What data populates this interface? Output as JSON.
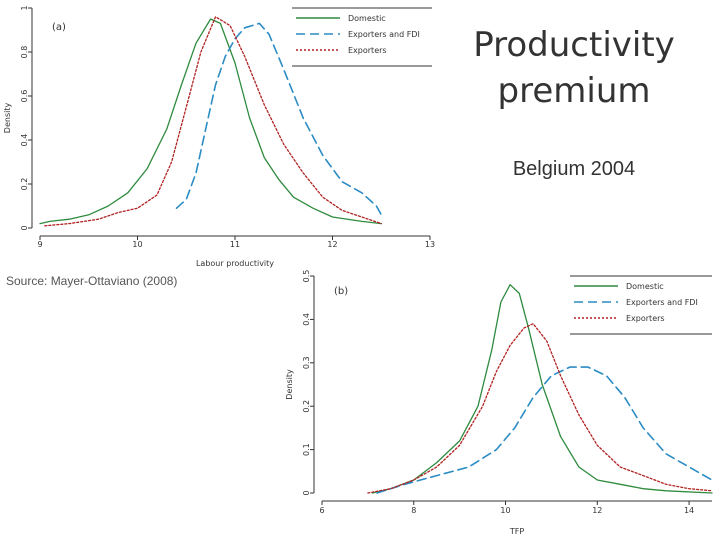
{
  "slide": {
    "title_line1": "Productivity",
    "title_line2": "premium",
    "subtitle": "Belgium 2004",
    "source": "Source: Mayer-Ottaviano (2008)"
  },
  "colors": {
    "domestic": "#2e8b3e",
    "exporters_fdi": "#2b8cc4",
    "exporters": "#b22222"
  },
  "chart_data": [
    {
      "type": "line",
      "panel_label": "(a)",
      "xlabel": "Labour productivity",
      "ylabel": "Density",
      "xlim": [
        9,
        13
      ],
      "ylim": [
        0,
        1
      ],
      "x_ticks": [
        "9",
        "10",
        "11",
        "12",
        "13"
      ],
      "y_ticks": [
        "0",
        "0.2",
        "0.4",
        "0.6",
        "0.8",
        "1"
      ],
      "legend_position": "top-right",
      "series": [
        {
          "name": "Domestic",
          "style": "solid",
          "color": "#2e8b3e",
          "points": [
            [
              9.0,
              0.02
            ],
            [
              9.1,
              0.03
            ],
            [
              9.3,
              0.04
            ],
            [
              9.5,
              0.06
            ],
            [
              9.7,
              0.1
            ],
            [
              9.9,
              0.16
            ],
            [
              10.1,
              0.27
            ],
            [
              10.3,
              0.45
            ],
            [
              10.45,
              0.65
            ],
            [
              10.6,
              0.84
            ],
            [
              10.75,
              0.95
            ],
            [
              10.85,
              0.93
            ],
            [
              11.0,
              0.75
            ],
            [
              11.15,
              0.5
            ],
            [
              11.3,
              0.32
            ],
            [
              11.45,
              0.22
            ],
            [
              11.6,
              0.14
            ],
            [
              11.8,
              0.09
            ],
            [
              12.0,
              0.05
            ],
            [
              12.3,
              0.03
            ],
            [
              12.5,
              0.02
            ]
          ]
        },
        {
          "name": "Exporters and FDI",
          "style": "dashed",
          "color": "#2b8cc4",
          "points": [
            [
              10.4,
              0.09
            ],
            [
              10.5,
              0.13
            ],
            [
              10.6,
              0.25
            ],
            [
              10.7,
              0.45
            ],
            [
              10.8,
              0.65
            ],
            [
              10.9,
              0.78
            ],
            [
              11.0,
              0.86
            ],
            [
              11.1,
              0.91
            ],
            [
              11.25,
              0.93
            ],
            [
              11.35,
              0.88
            ],
            [
              11.5,
              0.72
            ],
            [
              11.7,
              0.5
            ],
            [
              11.9,
              0.33
            ],
            [
              12.1,
              0.21
            ],
            [
              12.3,
              0.16
            ],
            [
              12.45,
              0.1
            ],
            [
              12.5,
              0.06
            ]
          ]
        },
        {
          "name": "Exporters",
          "style": "dotted",
          "color": "#b22222",
          "points": [
            [
              9.05,
              0.01
            ],
            [
              9.3,
              0.02
            ],
            [
              9.6,
              0.04
            ],
            [
              9.8,
              0.07
            ],
            [
              10.0,
              0.09
            ],
            [
              10.2,
              0.15
            ],
            [
              10.35,
              0.3
            ],
            [
              10.5,
              0.55
            ],
            [
              10.65,
              0.8
            ],
            [
              10.8,
              0.96
            ],
            [
              10.95,
              0.92
            ],
            [
              11.1,
              0.78
            ],
            [
              11.3,
              0.56
            ],
            [
              11.5,
              0.38
            ],
            [
              11.7,
              0.25
            ],
            [
              11.9,
              0.14
            ],
            [
              12.1,
              0.08
            ],
            [
              12.3,
              0.05
            ],
            [
              12.5,
              0.02
            ]
          ]
        }
      ]
    },
    {
      "type": "line",
      "panel_label": "(b)",
      "xlabel": "TFP",
      "ylabel": "Density",
      "xlim": [
        6,
        14.5
      ],
      "ylim": [
        0,
        0.5
      ],
      "x_ticks": [
        "6",
        "8",
        "10",
        "12",
        "14"
      ],
      "y_ticks": [
        "0",
        "0.1",
        "0.2",
        "0.3",
        "0.4",
        "0.5"
      ],
      "legend_position": "top-right",
      "series": [
        {
          "name": "Domestic",
          "style": "solid",
          "color": "#2e8b3e",
          "points": [
            [
              7.1,
              0.0
            ],
            [
              7.5,
              0.01
            ],
            [
              8.0,
              0.03
            ],
            [
              8.5,
              0.07
            ],
            [
              9.0,
              0.12
            ],
            [
              9.4,
              0.2
            ],
            [
              9.7,
              0.33
            ],
            [
              9.9,
              0.44
            ],
            [
              10.1,
              0.48
            ],
            [
              10.3,
              0.46
            ],
            [
              10.5,
              0.38
            ],
            [
              10.8,
              0.25
            ],
            [
              11.2,
              0.13
            ],
            [
              11.6,
              0.06
            ],
            [
              12.0,
              0.03
            ],
            [
              12.5,
              0.02
            ],
            [
              13.0,
              0.01
            ],
            [
              13.5,
              0.005
            ],
            [
              14.5,
              0.0
            ]
          ]
        },
        {
          "name": "Exporters and FDI",
          "style": "dashed",
          "color": "#2b8cc4",
          "points": [
            [
              7.2,
              0.0
            ],
            [
              7.8,
              0.02
            ],
            [
              8.5,
              0.04
            ],
            [
              9.2,
              0.06
            ],
            [
              9.8,
              0.1
            ],
            [
              10.2,
              0.15
            ],
            [
              10.6,
              0.22
            ],
            [
              11.0,
              0.27
            ],
            [
              11.4,
              0.29
            ],
            [
              11.8,
              0.29
            ],
            [
              12.2,
              0.27
            ],
            [
              12.6,
              0.22
            ],
            [
              13.0,
              0.15
            ],
            [
              13.5,
              0.09
            ],
            [
              14.0,
              0.06
            ],
            [
              14.5,
              0.03
            ]
          ]
        },
        {
          "name": "Exporters",
          "style": "dotted",
          "color": "#b22222",
          "points": [
            [
              7.0,
              0.0
            ],
            [
              7.5,
              0.01
            ],
            [
              8.0,
              0.03
            ],
            [
              8.5,
              0.06
            ],
            [
              9.0,
              0.11
            ],
            [
              9.5,
              0.2
            ],
            [
              9.8,
              0.28
            ],
            [
              10.1,
              0.34
            ],
            [
              10.4,
              0.38
            ],
            [
              10.6,
              0.39
            ],
            [
              10.9,
              0.35
            ],
            [
              11.2,
              0.27
            ],
            [
              11.6,
              0.18
            ],
            [
              12.0,
              0.11
            ],
            [
              12.5,
              0.06
            ],
            [
              13.0,
              0.04
            ],
            [
              13.5,
              0.02
            ],
            [
              14.0,
              0.01
            ],
            [
              14.5,
              0.005
            ]
          ]
        }
      ]
    }
  ]
}
